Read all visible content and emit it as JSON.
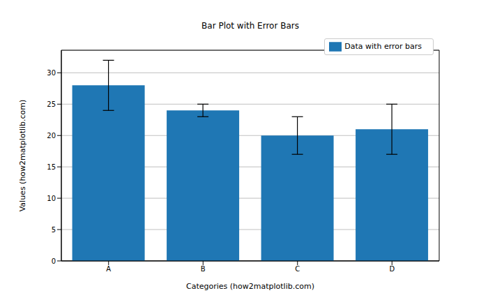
{
  "chart_data": {
    "type": "bar",
    "title": "Bar Plot with Error Bars",
    "x_label": "Categories (how2matplotlib.com)",
    "y_label": "Values (how2matplotlib.com)",
    "categories": [
      "A",
      "B",
      "C",
      "D"
    ],
    "series": [
      {
        "name": "Data with error bars",
        "color": "#1f77b4",
        "values": [
          28,
          24,
          20,
          21
        ],
        "errors": [
          4,
          1,
          3,
          4
        ]
      }
    ],
    "ylim": [
      0,
      33.6
    ],
    "yticks": [
      0,
      5,
      10,
      15,
      20,
      25,
      30
    ],
    "grid": true,
    "legend": "upper right"
  }
}
